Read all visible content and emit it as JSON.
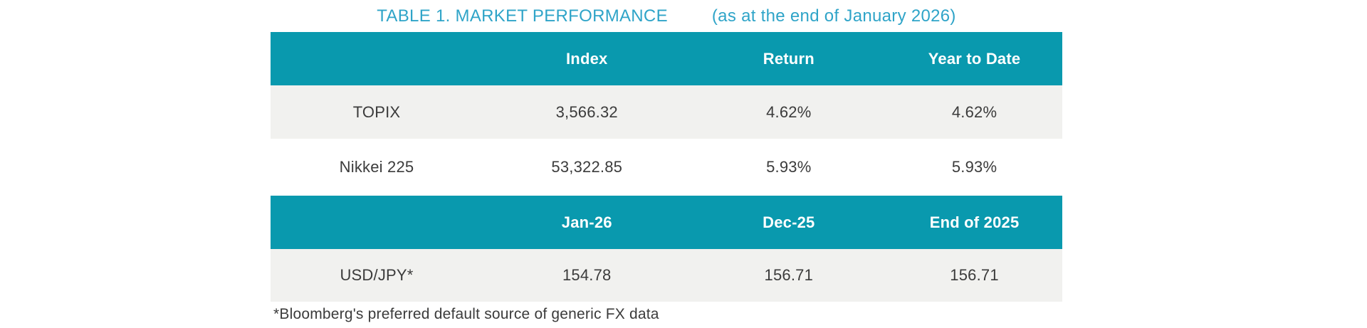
{
  "title": {
    "main": "TABLE 1. MARKET PERFORMANCE",
    "subtitle": "(as at the end of January 2026)"
  },
  "colors": {
    "accent_teal": "#0999AE",
    "title_blue": "#2FA4C8",
    "row_gray": "#F1F1EF",
    "text_dark": "#3B3B3B",
    "header_text": "#FFFFFF"
  },
  "table": {
    "sections": [
      {
        "header": [
          "",
          "Index",
          "Return",
          "Year to Date"
        ],
        "rows": [
          {
            "label": "TOPIX",
            "values": [
              "3,566.32",
              "4.62%",
              "4.62%"
            ]
          },
          {
            "label": "Nikkei 225",
            "values": [
              "53,322.85",
              "5.93%",
              "5.93%"
            ]
          }
        ]
      },
      {
        "header": [
          "",
          "Jan-26",
          "Dec-25",
          "End of 2025"
        ],
        "rows": [
          {
            "label": "USD/JPY*",
            "values": [
              "154.78",
              "156.71",
              "156.71"
            ]
          }
        ]
      }
    ]
  },
  "footnote": "*Bloomberg's preferred default source of generic FX data"
}
